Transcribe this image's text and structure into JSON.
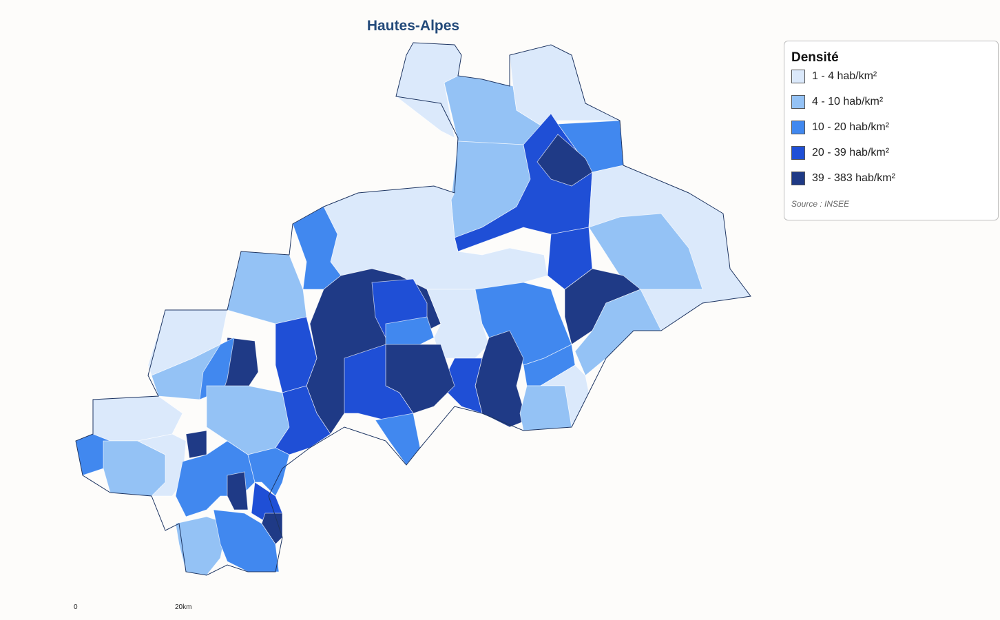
{
  "title": "Hautes-Alpes",
  "legend": {
    "title": "Densité",
    "items": [
      {
        "label": "1 - 4 hab/km²",
        "color": "#dbe9fb"
      },
      {
        "label": "4 - 10 hab/km²",
        "color": "#94c2f5"
      },
      {
        "label": "10 - 20 hab/km²",
        "color": "#4188ef"
      },
      {
        "label": "20 - 39 hab/km²",
        "color": "#1f4fd6"
      },
      {
        "label": "39 - 383 hab/km²",
        "color": "#1f3a86"
      }
    ],
    "source": "Source : INSEE"
  },
  "scale": {
    "start": "0",
    "end": "20km"
  }
}
